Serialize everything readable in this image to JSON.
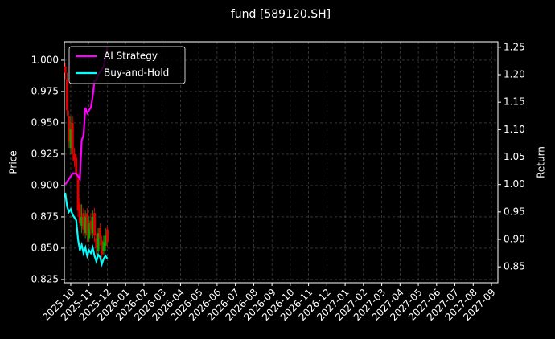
{
  "chart_data": {
    "type": "candlestick-return",
    "title": "fund [589120.SH]",
    "ylabel": "Price",
    "y2label": "Return",
    "x": [
      -0.3,
      -0.2,
      -0.1,
      0.0,
      0.1,
      0.2,
      0.3,
      0.4,
      0.5,
      0.6,
      0.7,
      0.8,
      0.9,
      1.0,
      1.1,
      1.2,
      1.3,
      1.4,
      1.5,
      1.6,
      1.7,
      1.8,
      1.9,
      2.0
    ],
    "price": {
      "open": [
        0.995,
        0.985,
        0.955,
        0.93,
        0.95,
        0.925,
        0.922,
        0.905,
        0.885,
        0.868,
        0.878,
        0.862,
        0.878,
        0.858,
        0.872,
        0.862,
        0.878,
        0.858,
        0.848,
        0.866,
        0.856,
        0.848,
        0.852,
        0.865
      ],
      "close": [
        0.99,
        0.96,
        0.935,
        0.945,
        0.925,
        0.92,
        0.91,
        0.88,
        0.87,
        0.875,
        0.865,
        0.875,
        0.86,
        0.87,
        0.865,
        0.875,
        0.86,
        0.85,
        0.862,
        0.858,
        0.845,
        0.855,
        0.86,
        0.855
      ],
      "high": [
        0.998,
        0.99,
        0.96,
        0.955,
        0.955,
        0.93,
        0.925,
        0.91,
        0.89,
        0.885,
        0.882,
        0.88,
        0.882,
        0.875,
        0.878,
        0.88,
        0.882,
        0.862,
        0.866,
        0.87,
        0.86,
        0.86,
        0.866,
        0.868
      ],
      "low": [
        0.985,
        0.955,
        0.93,
        0.925,
        0.92,
        0.915,
        0.905,
        0.875,
        0.865,
        0.862,
        0.86,
        0.858,
        0.855,
        0.855,
        0.86,
        0.858,
        0.855,
        0.845,
        0.845,
        0.852,
        0.84,
        0.845,
        0.848,
        0.85
      ],
      "up_color": "#00aa00",
      "down_color": "#dd0000"
    },
    "series": [
      {
        "name": "AI Strategy",
        "color": "#ff00ff",
        "axis": "y2",
        "values": [
          1.0,
          1.005,
          1.01,
          1.015,
          1.02,
          1.02,
          1.02,
          1.015,
          1.01,
          1.08,
          1.09,
          1.14,
          1.13,
          1.135,
          1.14,
          1.16,
          1.19,
          1.19,
          1.2,
          1.205,
          1.21,
          1.215,
          1.23,
          1.25
        ]
      },
      {
        "name": "Buy-and-Hold",
        "color": "#00ffff",
        "axis": "y2",
        "values": [
          0.985,
          0.96,
          0.95,
          0.955,
          0.945,
          0.94,
          0.935,
          0.9,
          0.88,
          0.89,
          0.875,
          0.885,
          0.87,
          0.88,
          0.875,
          0.885,
          0.87,
          0.86,
          0.872,
          0.868,
          0.855,
          0.865,
          0.87,
          0.865
        ]
      }
    ],
    "xlim": [
      -0.35,
      23.35
    ],
    "xticks": [
      {
        "value": 0,
        "label": "2025-10"
      },
      {
        "value": 1,
        "label": "2025-11"
      },
      {
        "value": 2,
        "label": "2025-12"
      },
      {
        "value": 3,
        "label": "2026-01"
      },
      {
        "value": 4,
        "label": "2026-02"
      },
      {
        "value": 5,
        "label": "2026-03"
      },
      {
        "value": 6,
        "label": "2026-04"
      },
      {
        "value": 7,
        "label": "2026-05"
      },
      {
        "value": 8,
        "label": "2026-06"
      },
      {
        "value": 9,
        "label": "2026-07"
      },
      {
        "value": 10,
        "label": "2026-08"
      },
      {
        "value": 11,
        "label": "2026-09"
      },
      {
        "value": 12,
        "label": "2026-10"
      },
      {
        "value": 13,
        "label": "2026-11"
      },
      {
        "value": 14,
        "label": "2026-12"
      },
      {
        "value": 15,
        "label": "2027-01"
      },
      {
        "value": 16,
        "label": "2027-02"
      },
      {
        "value": 17,
        "label": "2027-03"
      },
      {
        "value": 18,
        "label": "2027-04"
      },
      {
        "value": 19,
        "label": "2027-05"
      },
      {
        "value": 20,
        "label": "2027-06"
      },
      {
        "value": 21,
        "label": "2027-07"
      },
      {
        "value": 22,
        "label": "2027-08"
      },
      {
        "value": 23,
        "label": "2027-09"
      }
    ],
    "ylim": [
      0.8224,
      1.0147
    ],
    "yticks": [
      0.825,
      {
        "value": 0.85,
        "label": "0.850"
      },
      0.875,
      {
        "value": 0.9,
        "label": "0.900"
      },
      0.925,
      {
        "value": 0.95,
        "label": "0.950"
      },
      0.975,
      {
        "value": 1.0,
        "label": "1.000"
      }
    ],
    "y2lim": [
      0.821,
      1.26
    ],
    "y2ticks": [
      0.85,
      {
        "value": 0.9,
        "label": "0.90"
      },
      0.95,
      {
        "value": 1.0,
        "label": "1.00"
      },
      1.05,
      {
        "value": 1.1,
        "label": "1.10"
      },
      1.15,
      {
        "value": 1.2,
        "label": "1.20"
      },
      1.25
    ],
    "grid": true,
    "legend": "upper left"
  }
}
